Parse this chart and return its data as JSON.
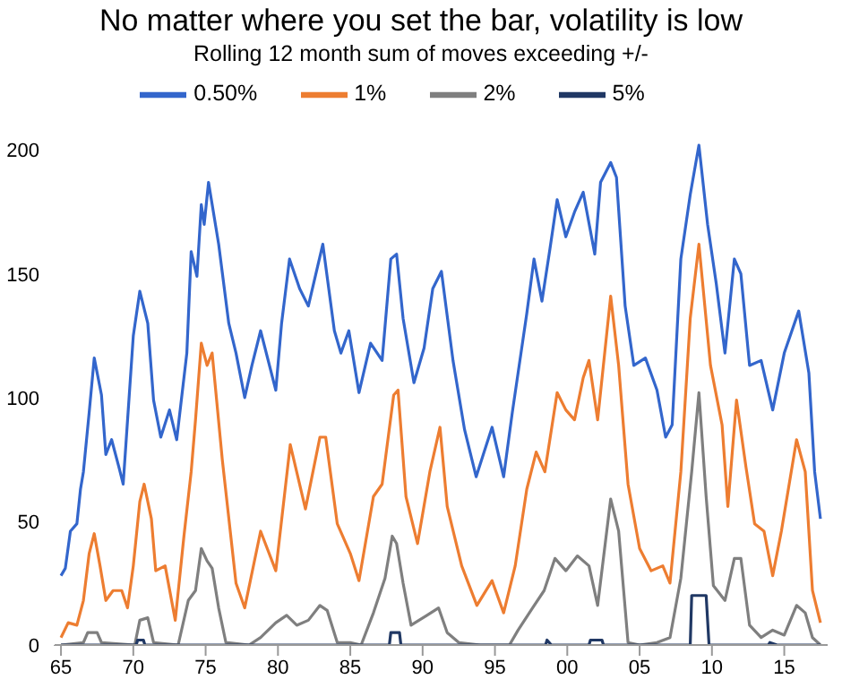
{
  "chart_data": {
    "type": "line",
    "title": "No matter where you set the bar, volatility is low",
    "subtitle": "Rolling 12 month sum of moves exceeding +/-",
    "xlim": [
      1964.5,
      2018
    ],
    "xticks": [
      {
        "value": 1965,
        "label": "65"
      },
      {
        "value": 1970,
        "label": "70"
      },
      {
        "value": 1975,
        "label": "75"
      },
      {
        "value": 1980,
        "label": "80"
      },
      {
        "value": 1985,
        "label": "85"
      },
      {
        "value": 1990,
        "label": "90"
      },
      {
        "value": 1995,
        "label": "95"
      },
      {
        "value": 2000,
        "label": "00"
      },
      {
        "value": 2005,
        "label": "05"
      },
      {
        "value": 2010,
        "label": "10"
      },
      {
        "value": 2015,
        "label": "15"
      }
    ],
    "ylim": [
      0,
      210
    ],
    "yticks": [
      0,
      50,
      100,
      150,
      200
    ],
    "grid": false,
    "legend": "top",
    "series": [
      {
        "name": "0.50%",
        "color": "#3366cc",
        "x": [
          1965,
          1965.3,
          1965.65,
          1966.1,
          1966.35,
          1966.55,
          1966.95,
          1967.3,
          1967.8,
          1968.1,
          1968.5,
          1969,
          1969.3,
          1970,
          1970.45,
          1971,
          1971.4,
          1971.9,
          1972.5,
          1973,
          1973.7,
          1974,
          1974.4,
          1974.7,
          1974.9,
          1975.2,
          1975.9,
          1976.6,
          1977.1,
          1977.7,
          1978.2,
          1978.8,
          1979.85,
          1980.25,
          1980.8,
          1981.5,
          1982.1,
          1983.1,
          1983.9,
          1984.35,
          1984.9,
          1985.6,
          1986.4,
          1987.2,
          1987.8,
          1988.2,
          1988.65,
          1989.4,
          1990.1,
          1990.7,
          1991.3,
          1992.1,
          1992.9,
          1993.7,
          1994.8,
          1995.6,
          1996.2,
          1997.2,
          1997.7,
          1998.25,
          1998.8,
          1999.3,
          1999.9,
          2000.5,
          2001.1,
          2001.9,
          2002.3,
          2003,
          2003.4,
          2004,
          2004.6,
          2005.4,
          2006.2,
          2006.8,
          2007.25,
          2007.85,
          2008.5,
          2009.1,
          2009.7,
          2010.3,
          2010.9,
          2011.55,
          2012,
          2012.6,
          2013.4,
          2014.2,
          2015,
          2016,
          2016.7,
          2017.1,
          2017.5
        ],
        "values": [
          28,
          31,
          46,
          49,
          63,
          70,
          94,
          116,
          101,
          77,
          83,
          72,
          65,
          125,
          143,
          130,
          99,
          84,
          95,
          83,
          118,
          159,
          149,
          178,
          170,
          187,
          162,
          130,
          118,
          100,
          113,
          127,
          103,
          130,
          156,
          144,
          137,
          162,
          127,
          118,
          127,
          102,
          122,
          115,
          156,
          158,
          132,
          106,
          120,
          144,
          151,
          115,
          87,
          68,
          88,
          68,
          94,
          134,
          156,
          139,
          160,
          180,
          165,
          175,
          183,
          158,
          187,
          195,
          189,
          137,
          113,
          116,
          103,
          84,
          89,
          156,
          182,
          202,
          170,
          146,
          118,
          156,
          150,
          113,
          115,
          95,
          118,
          135,
          110,
          70,
          51
        ]
      },
      {
        "name": "1%",
        "color": "#ed7d31",
        "x": [
          1965,
          1965.5,
          1966.1,
          1966.55,
          1966.95,
          1967.3,
          1967.7,
          1968.1,
          1968.6,
          1969.2,
          1969.6,
          1970,
          1970.45,
          1970.75,
          1971.25,
          1971.55,
          1972.2,
          1972.9,
          1973.5,
          1974,
          1974.3,
          1974.7,
          1975.1,
          1975.45,
          1976.15,
          1977.1,
          1977.7,
          1978.8,
          1979.85,
          1980.85,
          1981.9,
          1982.9,
          1983.3,
          1984.1,
          1985,
          1985.6,
          1986.6,
          1987.2,
          1988,
          1988.3,
          1988.85,
          1989.65,
          1990.5,
          1991.2,
          1991.7,
          1992.7,
          1993.75,
          1994.8,
          1995.6,
          1996.4,
          1997.2,
          1997.85,
          1998.45,
          1999.3,
          1999.9,
          2000.5,
          2001.1,
          2001.5,
          2002.1,
          2003,
          2003.55,
          2004.2,
          2005,
          2005.8,
          2006.6,
          2007.1,
          2007.85,
          2008.5,
          2009.1,
          2009.9,
          2010.7,
          2011.1,
          2011.7,
          2012.35,
          2012.95,
          2013.6,
          2014.2,
          2014.8,
          2015.85,
          2016.45,
          2016.95,
          2017.5
        ],
        "values": [
          3,
          9,
          8,
          18,
          37,
          45,
          32,
          18,
          22,
          22,
          15,
          32,
          58,
          65,
          51,
          30,
          32,
          10,
          44,
          70,
          91,
          122,
          113,
          118,
          75,
          25,
          15,
          46,
          30,
          81,
          55,
          84,
          84,
          49,
          37,
          26,
          60,
          65,
          101,
          103,
          60,
          41,
          70,
          88,
          56,
          32,
          16,
          26,
          13,
          32,
          63,
          78,
          70,
          102,
          95,
          91,
          108,
          115,
          91,
          141,
          113,
          65,
          39,
          30,
          32,
          25,
          70,
          132,
          162,
          113,
          89,
          56,
          99,
          72,
          49,
          46,
          28,
          46,
          83,
          70,
          22,
          9
        ]
      },
      {
        "name": "2%",
        "color": "#7f7f7f",
        "x": [
          1965,
          1966.55,
          1966.85,
          1967.5,
          1967.8,
          1970.1,
          1970.45,
          1971,
          1971.4,
          1973.1,
          1973.8,
          1974.3,
          1974.7,
          1975.1,
          1975.45,
          1975.9,
          1976.4,
          1978,
          1978.8,
          1979.85,
          1980.6,
          1981.3,
          1982.1,
          1982.9,
          1983.4,
          1984.1,
          1985,
          1985.75,
          1986.6,
          1987.4,
          1987.9,
          1988.2,
          1988.65,
          1989.2,
          1990.3,
          1991.1,
          1991.7,
          1992.5,
          1994,
          1996,
          1996.6,
          1997.6,
          1998.4,
          1999.15,
          1999.9,
          2000.7,
          2001.5,
          2002.1,
          2003,
          2003.55,
          2004.2,
          2005,
          2006.2,
          2007.1,
          2007.85,
          2008.6,
          2009.1,
          2009.6,
          2010.1,
          2010.9,
          2011.55,
          2012,
          2012.6,
          2013.4,
          2014.2,
          2015,
          2015.85,
          2016.45,
          2016.95,
          2017.5
        ],
        "values": [
          0,
          1,
          5,
          5,
          1,
          0,
          10,
          11,
          1,
          0,
          18,
          22,
          39,
          34,
          31,
          15,
          1,
          0,
          3,
          9,
          12,
          8,
          10,
          16,
          14,
          1,
          1,
          0,
          13,
          27,
          44,
          41,
          25,
          8,
          12,
          15,
          5,
          1,
          0,
          0,
          6,
          15,
          22,
          35,
          30,
          36,
          32,
          16,
          59,
          46,
          1,
          0,
          1,
          3,
          27,
          70,
          102,
          60,
          24,
          18,
          35,
          35,
          8,
          3,
          6,
          4,
          16,
          13,
          3,
          0
        ]
      },
      {
        "name": "5%",
        "color": "#203864",
        "x": [
          1965,
          1970.2,
          1970.3,
          1970.7,
          1970.8,
          1987.7,
          1987.8,
          1988.4,
          1988.5,
          1998.5,
          1998.6,
          1998.9,
          2001.5,
          2001.6,
          2002.4,
          2002.5,
          2008.5,
          2008.6,
          2009.6,
          2009.8,
          2013.9,
          2014,
          2014.5,
          2017.5
        ],
        "values": [
          0,
          0,
          2,
          2,
          0,
          0,
          5,
          5,
          0,
          0,
          2,
          0,
          0,
          2,
          2,
          0,
          0,
          20,
          20,
          0,
          0,
          1,
          0,
          0
        ]
      }
    ]
  }
}
